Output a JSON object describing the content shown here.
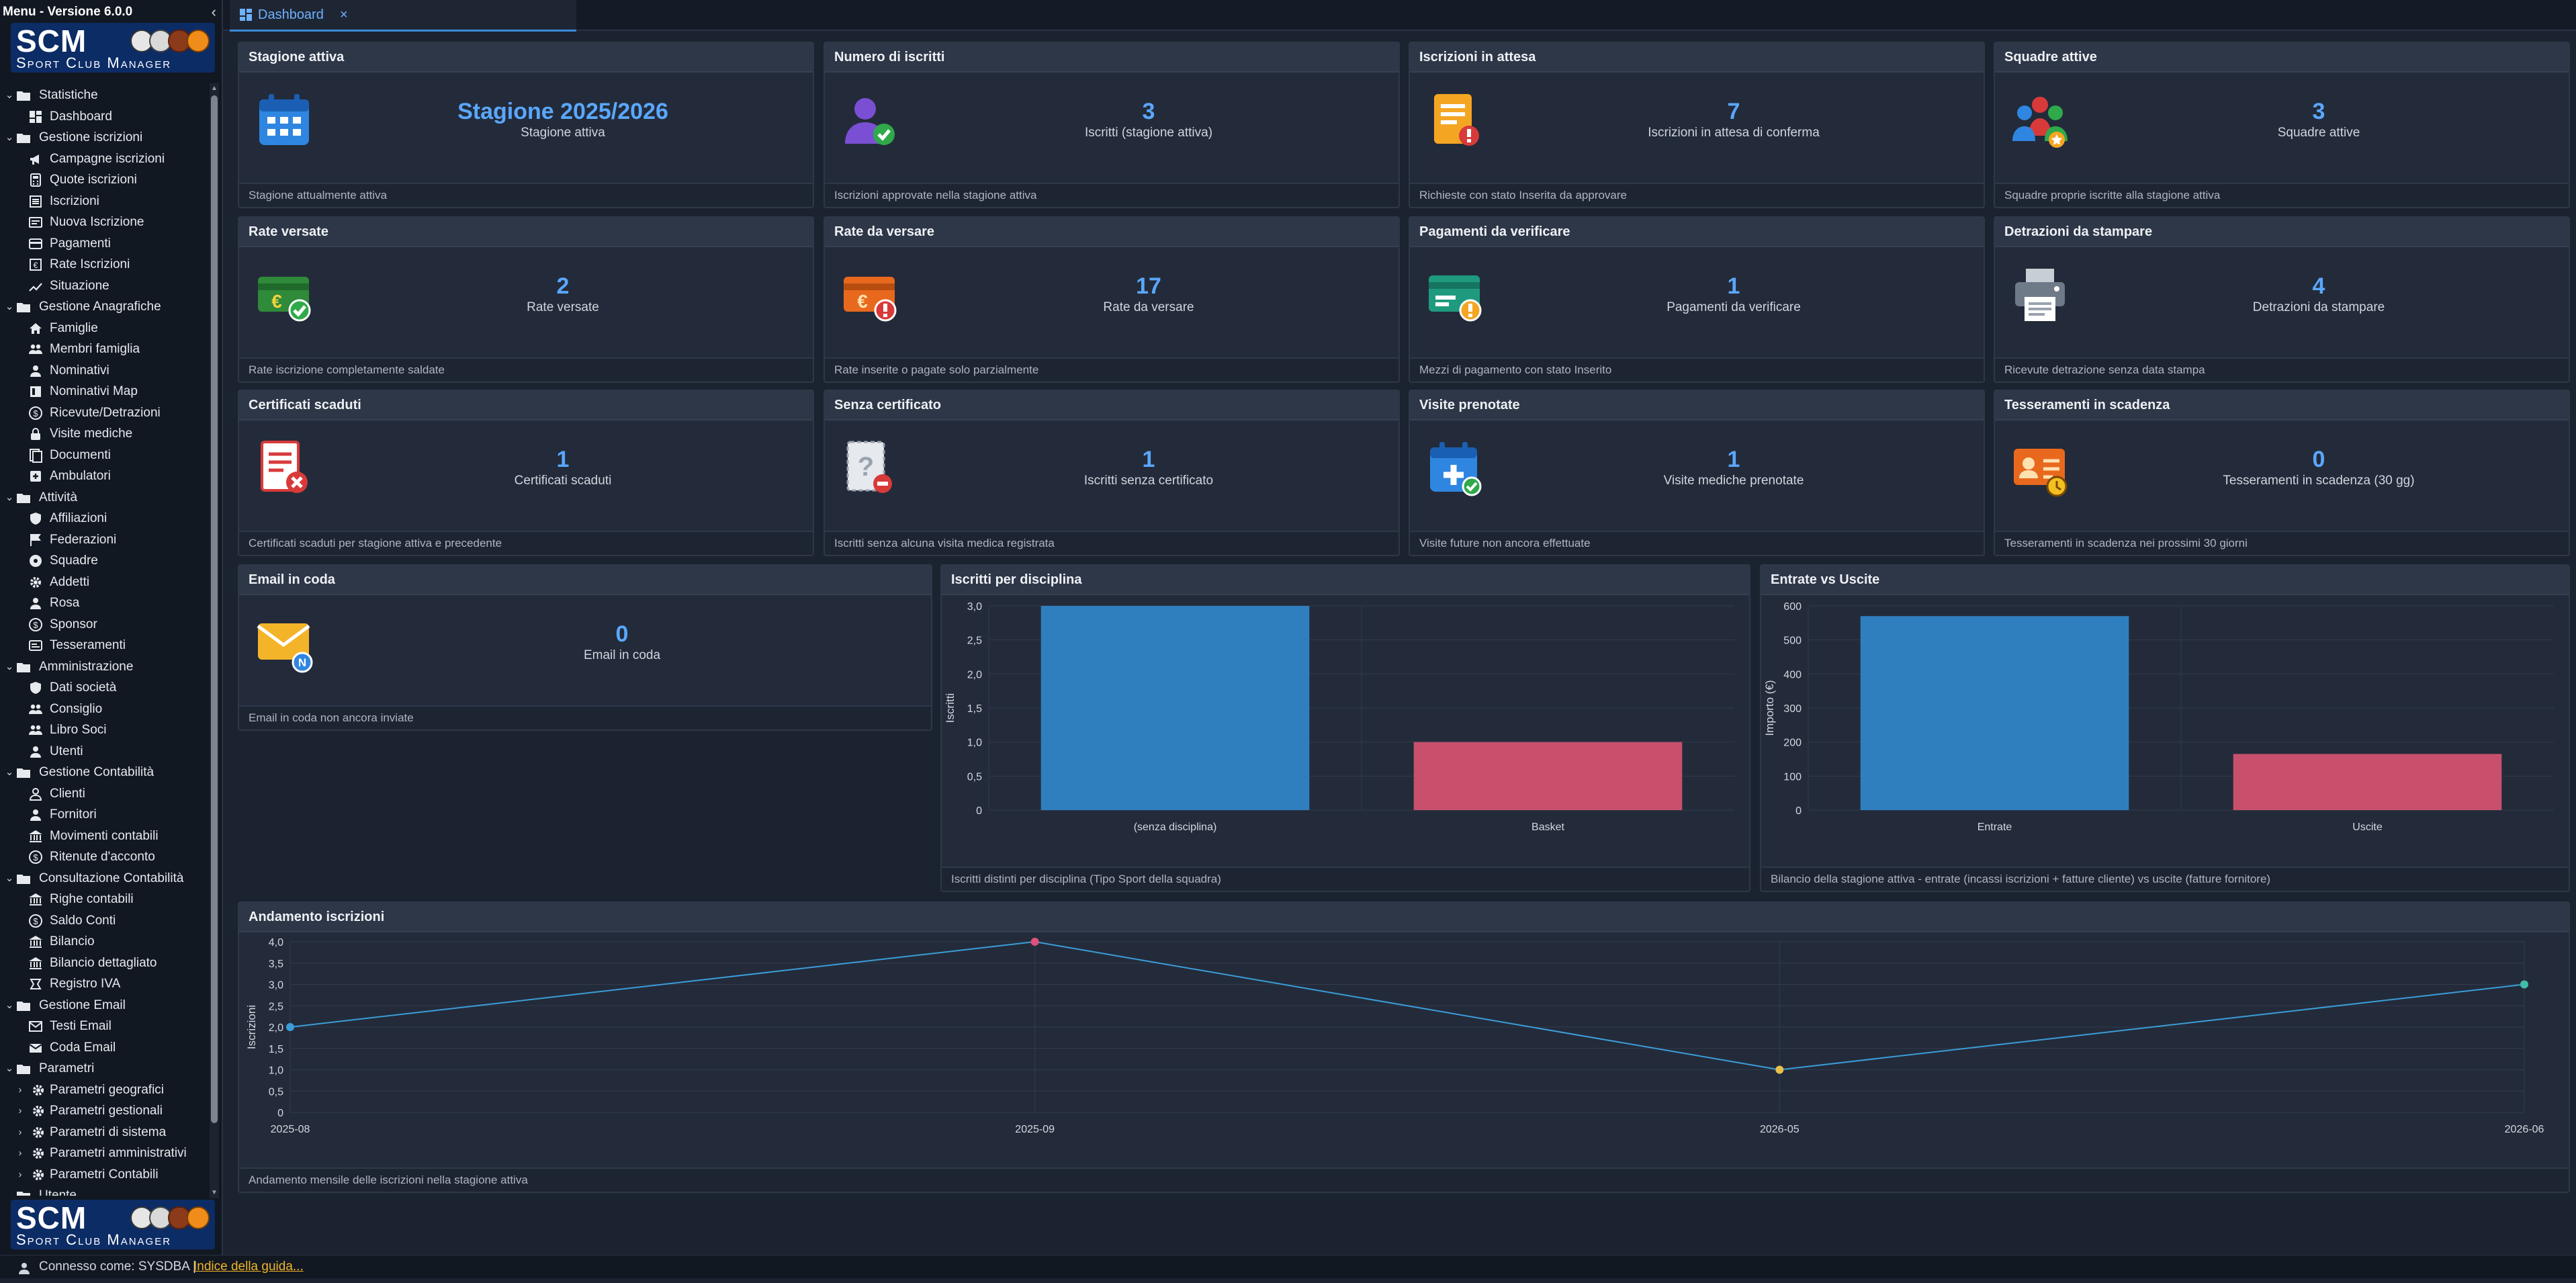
{
  "sidebar": {
    "title": "Menu - Versione 6.0.0",
    "logo": {
      "title": "SCM",
      "subtitle": "Sport Club Manager"
    },
    "items": [
      {
        "type": "group",
        "label": "Statistiche",
        "icon": "folder-icon",
        "name": "group-statistiche"
      },
      {
        "type": "leaf",
        "label": "Dashboard",
        "icon": "dashboard-icon",
        "name": "item-dashboard"
      },
      {
        "type": "group",
        "label": "Gestione iscrizioni",
        "icon": "folder-icon",
        "name": "group-gestione-iscrizioni"
      },
      {
        "type": "leaf",
        "label": "Campagne iscrizioni",
        "icon": "megaphone-icon",
        "name": "item-campagne-iscrizioni"
      },
      {
        "type": "leaf",
        "label": "Quote iscrizioni",
        "icon": "calculator-icon",
        "name": "item-quote-iscrizioni"
      },
      {
        "type": "leaf",
        "label": "Iscrizioni",
        "icon": "list-icon",
        "name": "item-iscrizioni"
      },
      {
        "type": "leaf",
        "label": "Nuova Iscrizione",
        "icon": "form-icon",
        "name": "item-nuova-iscrizione"
      },
      {
        "type": "leaf",
        "label": "Pagamenti",
        "icon": "card-icon",
        "name": "item-pagamenti"
      },
      {
        "type": "leaf",
        "label": "Rate Iscrizioni",
        "icon": "receipt-icon",
        "name": "item-rate-iscrizioni"
      },
      {
        "type": "leaf",
        "label": "Situazione",
        "icon": "trend-icon",
        "name": "item-situazione"
      },
      {
        "type": "group",
        "label": "Gestione Anagrafiche",
        "icon": "folder-icon",
        "name": "group-gestione-anagrafiche"
      },
      {
        "type": "leaf",
        "label": "Famiglie",
        "icon": "home-icon",
        "name": "item-famiglie"
      },
      {
        "type": "leaf",
        "label": "Membri famiglia",
        "icon": "users-icon",
        "name": "item-membri-famiglia"
      },
      {
        "type": "leaf",
        "label": "Nominativi",
        "icon": "user-icon",
        "name": "item-nominativi"
      },
      {
        "type": "leaf",
        "label": "Nominativi Map",
        "icon": "map-icon",
        "name": "item-nominativi-map"
      },
      {
        "type": "leaf",
        "label": "Ricevute/Detrazioni",
        "icon": "dollar-icon",
        "name": "item-ricevute-detrazioni"
      },
      {
        "type": "leaf",
        "label": "Visite mediche",
        "icon": "lock-icon",
        "name": "item-visite-mediche"
      },
      {
        "type": "leaf",
        "label": "Documenti",
        "icon": "document-icon",
        "name": "item-documenti"
      },
      {
        "type": "leaf",
        "label": "Ambulatori",
        "icon": "plus-square-icon",
        "name": "item-ambulatori"
      },
      {
        "type": "group",
        "label": "Attività",
        "icon": "folder-icon",
        "name": "group-attivita"
      },
      {
        "type": "leaf",
        "label": "Affiliazioni",
        "icon": "shield-icon",
        "name": "item-affiliazioni"
      },
      {
        "type": "leaf",
        "label": "Federazioni",
        "icon": "flag-icon",
        "name": "item-federazioni"
      },
      {
        "type": "leaf",
        "label": "Squadre",
        "icon": "ball-icon",
        "name": "item-squadre"
      },
      {
        "type": "leaf",
        "label": "Addetti",
        "icon": "gear-icon",
        "name": "item-addetti"
      },
      {
        "type": "leaf",
        "label": "Rosa",
        "icon": "user-icon",
        "name": "item-rosa"
      },
      {
        "type": "leaf",
        "label": "Sponsor",
        "icon": "dollar-icon",
        "name": "item-sponsor"
      },
      {
        "type": "leaf",
        "label": "Tesseramenti",
        "icon": "id-card-icon",
        "name": "item-tesseramenti"
      },
      {
        "type": "group",
        "label": "Amministrazione",
        "icon": "folder-icon",
        "name": "group-amministrazione"
      },
      {
        "type": "leaf",
        "label": "Dati società",
        "icon": "shield-icon",
        "name": "item-dati-societa"
      },
      {
        "type": "leaf",
        "label": "Consiglio",
        "icon": "users-icon",
        "name": "item-consiglio"
      },
      {
        "type": "leaf",
        "label": "Libro Soci",
        "icon": "users-icon",
        "name": "item-libro-soci"
      },
      {
        "type": "leaf",
        "label": "Utenti",
        "icon": "user-icon",
        "name": "item-utenti"
      },
      {
        "type": "group",
        "label": "Gestione Contabilità",
        "icon": "folder-icon",
        "name": "group-gestione-contabilita"
      },
      {
        "type": "leaf",
        "label": "Clienti",
        "icon": "user-outline-icon",
        "name": "item-clienti"
      },
      {
        "type": "leaf",
        "label": "Fornitori",
        "icon": "user-icon",
        "name": "item-fornitori"
      },
      {
        "type": "leaf",
        "label": "Movimenti contabili",
        "icon": "bank-icon",
        "name": "item-movimenti-contabili"
      },
      {
        "type": "leaf",
        "label": "Ritenute d'acconto",
        "icon": "dollar-icon",
        "name": "item-ritenute-acconto"
      },
      {
        "type": "group",
        "label": "Consultazione Contabilità",
        "icon": "folder-icon",
        "name": "group-consultazione-contabilita"
      },
      {
        "type": "leaf",
        "label": "Righe contabili",
        "icon": "bank-icon",
        "name": "item-righe-contabili"
      },
      {
        "type": "leaf",
        "label": "Saldo Conti",
        "icon": "dollar-icon",
        "name": "item-saldo-conti"
      },
      {
        "type": "leaf",
        "label": "Bilancio",
        "icon": "bank-icon",
        "name": "item-bilancio"
      },
      {
        "type": "leaf",
        "label": "Bilancio dettagliato",
        "icon": "bank-icon",
        "name": "item-bilancio-dettagliato"
      },
      {
        "type": "leaf",
        "label": "Registro IVA",
        "icon": "registry-icon",
        "name": "item-registro-iva"
      },
      {
        "type": "group",
        "label": "Gestione Email",
        "icon": "folder-icon",
        "name": "group-gestione-email"
      },
      {
        "type": "leaf",
        "label": "Testi Email",
        "icon": "mail-icon",
        "name": "item-testi-email"
      },
      {
        "type": "leaf",
        "label": "Coda Email",
        "icon": "mail-queue-icon",
        "name": "item-coda-email"
      },
      {
        "type": "group",
        "label": "Parametri",
        "icon": "folder-icon",
        "name": "group-parametri"
      },
      {
        "type": "sub",
        "label": "Parametri geografici",
        "icon": "gear-icon",
        "name": "item-parametri-geografici"
      },
      {
        "type": "sub",
        "label": "Parametri gestionali",
        "icon": "gear-icon",
        "name": "item-parametri-gestionali"
      },
      {
        "type": "sub",
        "label": "Parametri di sistema",
        "icon": "gear-icon",
        "name": "item-parametri-sistema"
      },
      {
        "type": "sub",
        "label": "Parametri amministrativi",
        "icon": "gear-icon",
        "name": "item-parametri-amministrativi"
      },
      {
        "type": "sub",
        "label": "Parametri Contabili",
        "icon": "gear-icon",
        "name": "item-parametri-contabili"
      },
      {
        "type": "group",
        "label": "Utente",
        "icon": "folder-icon",
        "name": "group-utente"
      }
    ]
  },
  "tabs": [
    {
      "label": "Dashboard",
      "close": "×"
    }
  ],
  "status": {
    "connected_text": "Connesso come: SYSDBA |",
    "guide_link": "Indice della guida..."
  },
  "colors": {
    "accent": "#5aa7ff",
    "bar_blue": "#2f7fbf",
    "bar_pink": "#c8506c",
    "point_blue": "#3b9dd8",
    "point_pink": "#e0507a",
    "point_yellow": "#e9c04b",
    "point_green": "#3fbfa8"
  },
  "cards": [
    {
      "title": "Stagione attiva",
      "value": "Stagione 2025/2026",
      "label": "Stagione attiva",
      "footer": "Stagione attualmente attiva",
      "icon": "calendar-icon"
    },
    {
      "title": "Numero di iscritti",
      "value": "3",
      "label": "Iscritti (stagione attiva)",
      "footer": "Iscrizioni approvate nella stagione attiva",
      "icon": "user-check-icon"
    },
    {
      "title": "Iscrizioni in attesa",
      "value": "7",
      "label": "Iscrizioni in attesa di conferma",
      "footer": "Richieste con stato Inserita da approvare",
      "icon": "document-alert-icon"
    },
    {
      "title": "Squadre attive",
      "value": "3",
      "label": "Squadre attive",
      "footer": "Squadre proprie iscritte alla stagione attiva",
      "icon": "team-icon"
    },
    {
      "title": "Rate versate",
      "value": "2",
      "label": "Rate versate",
      "footer": "Rate iscrizione completamente saldate",
      "icon": "euro-check-icon"
    },
    {
      "title": "Rate da versare",
      "value": "17",
      "label": "Rate da versare",
      "footer": "Rate inserite o pagate solo parzialmente",
      "icon": "euro-alert-icon"
    },
    {
      "title": "Pagamenti da verificare",
      "value": "1",
      "label": "Pagamenti da verificare",
      "footer": "Mezzi di pagamento con stato Inserito",
      "icon": "card-warning-icon"
    },
    {
      "title": "Detrazioni da stampare",
      "value": "4",
      "label": "Detrazioni da stampare",
      "footer": "Ricevute detrazione senza data stampa",
      "icon": "printer-icon"
    },
    {
      "title": "Certificati scaduti",
      "value": "1",
      "label": "Certificati scaduti",
      "footer": "Certificati scaduti per stagione attiva e precedente",
      "icon": "certificate-expired-icon"
    },
    {
      "title": "Senza certificato",
      "value": "1",
      "label": "Iscritti senza certificato",
      "footer": "Iscritti senza alcuna visita medica registrata",
      "icon": "certificate-missing-icon"
    },
    {
      "title": "Visite prenotate",
      "value": "1",
      "label": "Visite mediche prenotate",
      "footer": "Visite future non ancora effettuate",
      "icon": "medical-calendar-icon"
    },
    {
      "title": "Tesseramenti in scadenza",
      "value": "0",
      "label": "Tesseramenti in scadenza (30 gg)",
      "footer": "Tesseramenti in scadenza nei prossimi 30 giorni",
      "icon": "id-clock-icon"
    },
    {
      "title": "Email in coda",
      "value": "0",
      "label": "Email in coda",
      "footer": "Email in coda non ancora inviate",
      "icon": "envelope-icon"
    }
  ],
  "charts": {
    "disciplina": {
      "title": "Iscritti per disciplina",
      "footer": "Iscritti distinti per disciplina (Tipo Sport della squadra)"
    },
    "entrate": {
      "title": "Entrate vs Uscite",
      "footer": "Bilancio della stagione attiva - entrate (incassi iscrizioni + fatture cliente) vs uscite (fatture fornitore)"
    },
    "andamento": {
      "title": "Andamento iscrizioni",
      "footer": "Andamento mensile delle iscrizioni nella stagione attiva"
    }
  },
  "chart_data": [
    {
      "type": "bar",
      "title": "Iscritti per disciplina",
      "categories": [
        "(senza disciplina)",
        "Basket"
      ],
      "values": [
        3,
        1
      ],
      "ylabel": "Iscritti",
      "ylim": [
        0,
        3
      ],
      "yticks": [
        "0",
        "0,5",
        "1,0",
        "1,5",
        "2,0",
        "2,5",
        "3,0"
      ],
      "grid": true
    },
    {
      "type": "bar",
      "title": "Entrate vs Uscite",
      "categories": [
        "Entrate",
        "Uscite"
      ],
      "values": [
        570,
        165
      ],
      "ylabel": "Importo (€)",
      "ylim": [
        0,
        600
      ],
      "yticks": [
        "0",
        "100",
        "200",
        "300",
        "400",
        "500",
        "600"
      ],
      "grid": true
    },
    {
      "type": "line",
      "title": "Andamento iscrizioni",
      "x": [
        "2025-08",
        "2025-09",
        "2026-05",
        "2026-06"
      ],
      "values": [
        2,
        4,
        1,
        3
      ],
      "ylabel": "Iscrizioni",
      "ylim": [
        0,
        4
      ],
      "yticks": [
        "0",
        "0,5",
        "1,0",
        "1,5",
        "2,0",
        "2,5",
        "3,0",
        "3,5",
        "4,0"
      ],
      "grid": true
    }
  ]
}
